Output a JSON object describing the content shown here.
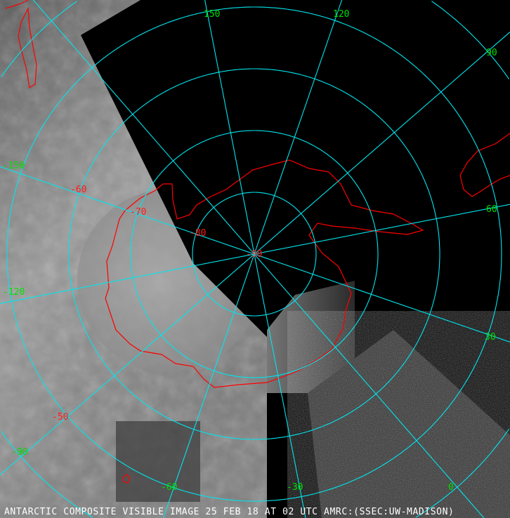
{
  "caption": "ANTARCTIC COMPOSITE VISIBLE IMAGE 25 FEB 18 AT 02 UTC AMRC:(SSEC:UW-MADISON)",
  "colors": {
    "graticule": "#00e5ee",
    "longitude_labels": "#00e000",
    "latitude_labels": "#ff1a1a",
    "coastline": "#ff0000"
  },
  "longitude_labels": [
    "150",
    "120",
    "90",
    "60",
    "30",
    "0",
    "-30",
    "-60",
    "-90",
    "-120",
    "-150"
  ],
  "latitude_labels": [
    "-50",
    "-60",
    "-70",
    "-80",
    "-90"
  ],
  "projection": "south polar"
}
